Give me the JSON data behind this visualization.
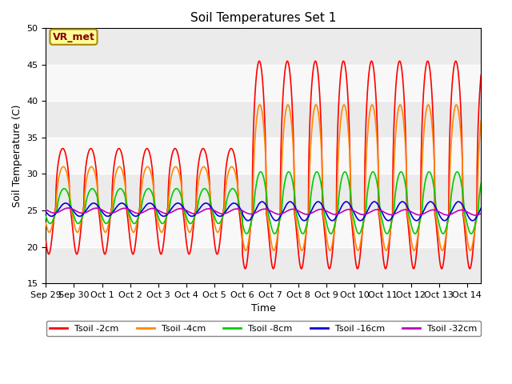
{
  "title": "Soil Temperatures Set 1",
  "xlabel": "Time",
  "ylabel": "Soil Temperature (C)",
  "ylim": [
    15,
    50
  ],
  "yticks": [
    15,
    20,
    25,
    30,
    35,
    40,
    45,
    50
  ],
  "annotation_text": "VR_met",
  "annotation_bg": "#FFFF99",
  "annotation_border": "#AA8800",
  "annotation_fg": "#880000",
  "bg_color": "#E8E8E8",
  "series": [
    {
      "label": "Tsoil -2cm",
      "color": "#FF0000",
      "lw": 1.2
    },
    {
      "label": "Tsoil -4cm",
      "color": "#FF8800",
      "lw": 1.2
    },
    {
      "label": "Tsoil -8cm",
      "color": "#00CC00",
      "lw": 1.2
    },
    {
      "label": "Tsoil -16cm",
      "color": "#0000DD",
      "lw": 1.2
    },
    {
      "label": "Tsoil -32cm",
      "color": "#BB00BB",
      "lw": 1.2
    }
  ],
  "x_tick_labels": [
    "Sep 29",
    "Sep 30",
    "Oct 1",
    "Oct 2",
    "Oct 3",
    "Oct 4",
    "Oct 5",
    "Oct 6",
    "Oct 7",
    "Oct 8",
    "Oct 9",
    "Oct 10",
    "Oct 11",
    "Oct 12",
    "Oct 13",
    "Oct 14"
  ],
  "n_days": 15.5
}
